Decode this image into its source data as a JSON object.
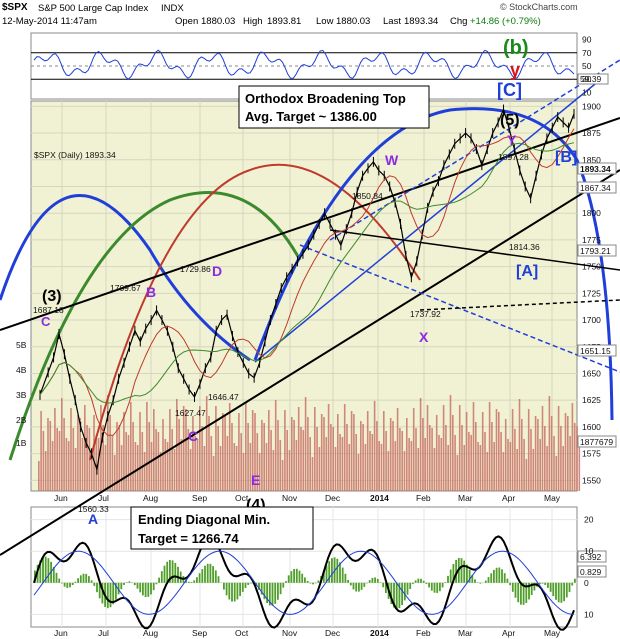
{
  "header": {
    "symbol": "$SPX",
    "name": "S&P 500 Large Cap Index",
    "exchange": "INDX",
    "datetime": "12-May-2014 11:47am",
    "open_label": "Open",
    "open": "1880.03",
    "high_label": "High",
    "high": "1893.81",
    "low_label": "Low",
    "low": "1880.03",
    "last_label": "Last",
    "last": "1893.34",
    "chg_label": "Chg",
    "chg": "+14.86 (+0.79%)",
    "watermark": "© StockCharts.com"
  },
  "chart_data": [
    {
      "type": "line",
      "panel": "rsi",
      "ylim": [
        0,
        100
      ],
      "ticks": [
        "90",
        "70",
        "50",
        "30",
        "10"
      ],
      "levels": [
        70,
        30
      ],
      "last_value": "59.39"
    },
    {
      "type": "line",
      "panel": "price",
      "title": "$SPX (Daily) 1893.34",
      "ylim": [
        1540,
        1905
      ],
      "x_ticks": [
        "Jun",
        "Jul",
        "Aug",
        "Sep",
        "Oct",
        "Nov",
        "Dec",
        "2014",
        "Feb",
        "Mar",
        "Apr",
        "May"
      ],
      "y_ticks": [
        "1900",
        "1875",
        "1850",
        "1825",
        "1800",
        "1775",
        "1750",
        "1725",
        "1700",
        "1675",
        "1650",
        "1625",
        "1600",
        "1575",
        "1550"
      ],
      "volume_ticks": [
        "5B",
        "4B",
        "3B",
        "2B",
        "1B"
      ],
      "series": [
        {
          "values": [
            [
              0,
              1630
            ],
            [
              6,
              1651
            ],
            [
              10,
              1665
            ],
            [
              14,
              1687
            ],
            [
              18,
              1668
            ],
            [
              22,
              1645
            ],
            [
              26,
              1625
            ],
            [
              30,
              1600
            ],
            [
              34,
              1585
            ],
            [
              38,
              1575
            ],
            [
              42,
              1560
            ],
            [
              46,
              1590
            ],
            [
              50,
              1610
            ],
            [
              54,
              1625
            ],
            [
              58,
              1645
            ],
            [
              62,
              1660
            ],
            [
              66,
              1675
            ],
            [
              70,
              1690
            ],
            [
              74,
              1680
            ],
            [
              78,
              1692
            ],
            [
              82,
              1700
            ],
            [
              86,
              1709
            ],
            [
              90,
              1700
            ],
            [
              94,
              1690
            ],
            [
              98,
              1675
            ],
            [
              102,
              1655
            ],
            [
              106,
              1645
            ],
            [
              110,
              1635
            ],
            [
              114,
              1628
            ],
            [
              118,
              1640
            ],
            [
              122,
              1655
            ],
            [
              126,
              1665
            ],
            [
              130,
              1690
            ],
            [
              134,
              1700
            ],
            [
              138,
              1705
            ],
            [
              142,
              1685
            ],
            [
              146,
              1670
            ],
            [
              150,
              1660
            ],
            [
              154,
              1650
            ],
            [
              158,
              1646
            ],
            [
              162,
              1660
            ],
            [
              166,
              1680
            ],
            [
              170,
              1700
            ],
            [
              174,
              1715
            ],
            [
              178,
              1730
            ],
            [
              182,
              1740
            ],
            [
              186,
              1748
            ],
            [
              190,
              1755
            ],
            [
              194,
              1762
            ],
            [
              198,
              1770
            ],
            [
              202,
              1780
            ],
            [
              206,
              1790
            ],
            [
              210,
              1800
            ],
            [
              214,
              1790
            ],
            [
              218,
              1780
            ],
            [
              222,
              1770
            ],
            [
              226,
              1785
            ],
            [
              230,
              1800
            ],
            [
              234,
              1820
            ],
            [
              238,
              1835
            ],
            [
              242,
              1842
            ],
            [
              246,
              1848
            ],
            [
              250,
              1840
            ],
            [
              254,
              1835
            ],
            [
              258,
              1825
            ],
            [
              262,
              1810
            ],
            [
              266,
              1790
            ],
            [
              270,
              1760
            ],
            [
              274,
              1740
            ],
            [
              278,
              1755
            ],
            [
              282,
              1780
            ],
            [
              286,
              1805
            ],
            [
              290,
              1820
            ],
            [
              294,
              1830
            ],
            [
              298,
              1845
            ],
            [
              302,
              1855
            ],
            [
              306,
              1865
            ],
            [
              310,
              1870
            ],
            [
              314,
              1875
            ],
            [
              318,
              1870
            ],
            [
              322,
              1860
            ],
            [
              326,
              1845
            ],
            [
              330,
              1860
            ],
            [
              334,
              1875
            ],
            [
              338,
              1885
            ],
            [
              342,
              1897
            ],
            [
              346,
              1880
            ],
            [
              350,
              1860
            ],
            [
              354,
              1840
            ],
            [
              358,
              1825
            ],
            [
              362,
              1814
            ],
            [
              366,
              1835
            ],
            [
              370,
              1855
            ],
            [
              374,
              1870
            ],
            [
              378,
              1880
            ],
            [
              382,
              1890
            ],
            [
              386,
              1885
            ],
            [
              390,
              1880
            ],
            [
              394,
              1893
            ]
          ]
        }
      ],
      "price_labels": [
        "1893.34",
        "1867.34",
        "1793.21",
        "1651.15",
        "1877679"
      ],
      "point_labels": [
        "1687.18",
        "1709.67",
        "1729.86",
        "1627.47",
        "1646.47",
        "1560.33",
        "1850.84",
        "1737.92",
        "1897.28",
        "1814.36"
      ],
      "annotations": [
        "(b)",
        "y",
        "[C]",
        "(5)",
        "Y",
        "W",
        "X",
        "[B]",
        "[A]",
        "(3)",
        "C",
        "B",
        "D",
        "C",
        "E",
        "(4)",
        "A"
      ],
      "callouts": [
        {
          "line1": "Orthodox Broadening Top",
          "line2": "Avg. Target ~ 1386.00"
        },
        {
          "line1": "Ending Diagonal Min.",
          "line2": "Target = 1266.74"
        }
      ]
    },
    {
      "type": "bar",
      "panel": "macd",
      "ylim": [
        -14,
        24
      ],
      "ticks": [
        "20",
        "10",
        "0",
        "10"
      ],
      "last_values": [
        "6.392",
        "0.829"
      ]
    }
  ],
  "colors": {
    "price_bg": "#f1f2d3",
    "up": "#000000",
    "ma_green": "#3c8a2e",
    "ma_red": "#c0392b",
    "blue": "#1f3fd8",
    "purple": "#8a2be2",
    "volume": "#c76b63",
    "macd_hist": "#4f9f2a"
  }
}
